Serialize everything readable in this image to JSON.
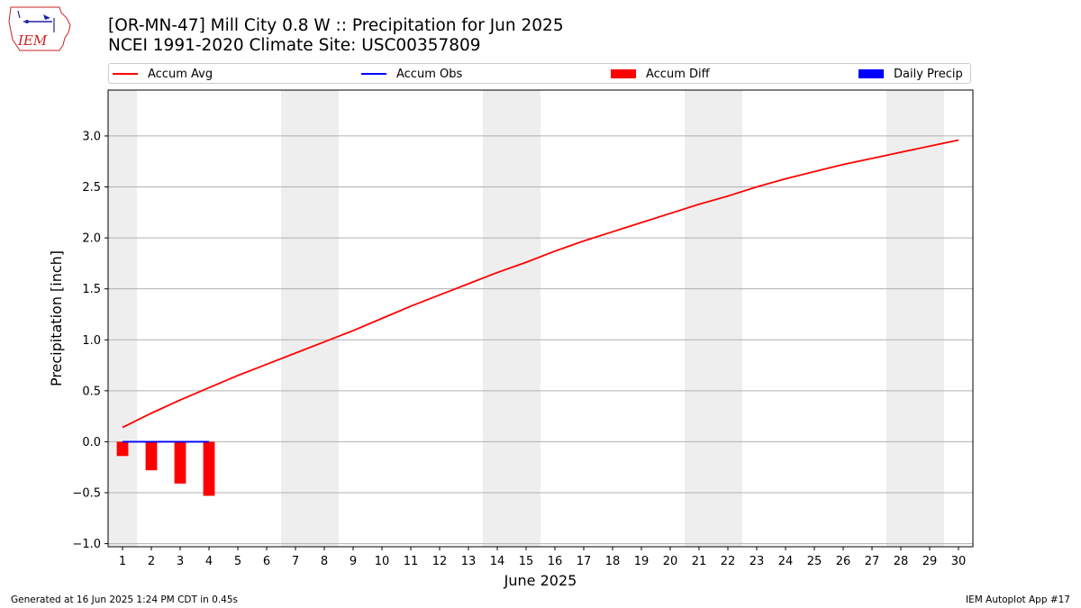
{
  "header": {
    "title_line1": "[OR-MN-47] Mill City 0.8 W :: Precipitation for Jun 2025",
    "title_line2": "NCEI 1991-2020 Climate Site: USC00357809"
  },
  "logo": {
    "text": "IEM"
  },
  "legend": {
    "items": [
      {
        "label": "Accum Avg",
        "color": "#ff0000",
        "kind": "line"
      },
      {
        "label": "Accum Obs",
        "color": "#0000ff",
        "kind": "line"
      },
      {
        "label": "Accum Diff",
        "color": "#ff0000",
        "kind": "bar"
      },
      {
        "label": "Daily Precip",
        "color": "#0000ff",
        "kind": "bar"
      }
    ]
  },
  "footer": {
    "generated": "Generated at 16 Jun 2025 1:24 PM CDT in 0.45s",
    "app": "IEM Autoplot App #17"
  },
  "chart_data": {
    "type": "line",
    "title": "[OR-MN-47] Mill City 0.8 W :: Precipitation for Jun 2025",
    "xlabel": "June 2025",
    "ylabel": "Precipitation [inch]",
    "x": [
      1,
      2,
      3,
      4,
      5,
      6,
      7,
      8,
      9,
      10,
      11,
      12,
      13,
      14,
      15,
      16,
      17,
      18,
      19,
      20,
      21,
      22,
      23,
      24,
      25,
      26,
      27,
      28,
      29,
      30
    ],
    "xlim": [
      0.5,
      30.5
    ],
    "ylim": [
      -1.03,
      3.45
    ],
    "yticks": [
      -1.0,
      -0.5,
      0.0,
      0.5,
      1.0,
      1.5,
      2.0,
      2.5,
      3.0
    ],
    "ytick_labels": [
      "−1.0",
      "−0.5",
      "0.0",
      "0.5",
      "1.0",
      "1.5",
      "2.0",
      "2.5",
      "3.0"
    ],
    "grid": "horizontal",
    "weekend_shading": [
      [
        0.5,
        1.5
      ],
      [
        6.5,
        8.5
      ],
      [
        13.5,
        15.5
      ],
      [
        20.5,
        22.5
      ],
      [
        27.5,
        29.5
      ]
    ],
    "series": [
      {
        "name": "Accum Avg",
        "kind": "line",
        "color": "#ff0000",
        "x": [
          1,
          2,
          3,
          4,
          5,
          6,
          7,
          8,
          9,
          10,
          11,
          12,
          13,
          14,
          15,
          16,
          17,
          18,
          19,
          20,
          21,
          22,
          23,
          24,
          25,
          26,
          27,
          28,
          29,
          30
        ],
        "values": [
          0.14,
          0.28,
          0.41,
          0.53,
          0.65,
          0.76,
          0.87,
          0.98,
          1.09,
          1.21,
          1.33,
          1.44,
          1.55,
          1.66,
          1.76,
          1.87,
          1.97,
          2.06,
          2.15,
          2.24,
          2.33,
          2.41,
          2.5,
          2.58,
          2.65,
          2.72,
          2.78,
          2.84,
          2.9,
          2.96
        ]
      },
      {
        "name": "Accum Obs",
        "kind": "line",
        "color": "#0000ff",
        "x": [
          1,
          2,
          3,
          4
        ],
        "values": [
          0.0,
          0.0,
          0.0,
          0.0
        ]
      },
      {
        "name": "Accum Diff",
        "kind": "bar",
        "color": "#ff0000",
        "x": [
          1,
          2,
          3,
          4
        ],
        "values": [
          -0.14,
          -0.28,
          -0.41,
          -0.53
        ]
      },
      {
        "name": "Daily Precip",
        "kind": "bar",
        "color": "#0000ff",
        "x": [
          1,
          2,
          3,
          4
        ],
        "values": [
          0.0,
          0.0,
          0.0,
          0.0
        ]
      }
    ]
  }
}
